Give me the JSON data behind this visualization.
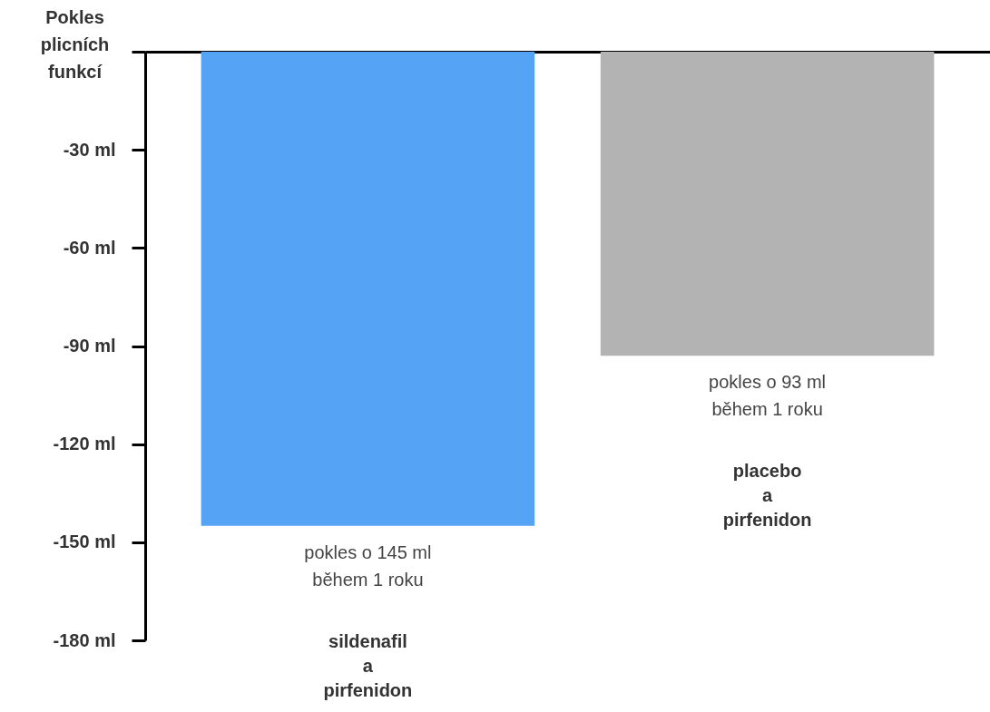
{
  "chart_data": {
    "type": "bar",
    "ylabel": "Pokles plicních funkcí",
    "categories": [
      "sildenafil\na\npirfenidon",
      "placebo\na\npirfenidon"
    ],
    "values": [
      -145,
      -93
    ],
    "colors": [
      "#55a3f5",
      "#b3b3b3"
    ],
    "value_labels": [
      "pokles o 145 ml\nběhem 1 roku",
      "pokles o 93 ml\nběhem 1 roku"
    ],
    "ylim": [
      -180,
      0
    ],
    "yticks": [
      {
        "value": 0,
        "label": null
      },
      {
        "value": -30,
        "label": "-30 ml"
      },
      {
        "value": -60,
        "label": "-60 ml"
      },
      {
        "value": -90,
        "label": "-90 ml"
      },
      {
        "value": -120,
        "label": "-120 ml"
      },
      {
        "value": -150,
        "label": "-150 ml"
      },
      {
        "value": -180,
        "label": "-180 ml"
      }
    ],
    "grid": false
  }
}
